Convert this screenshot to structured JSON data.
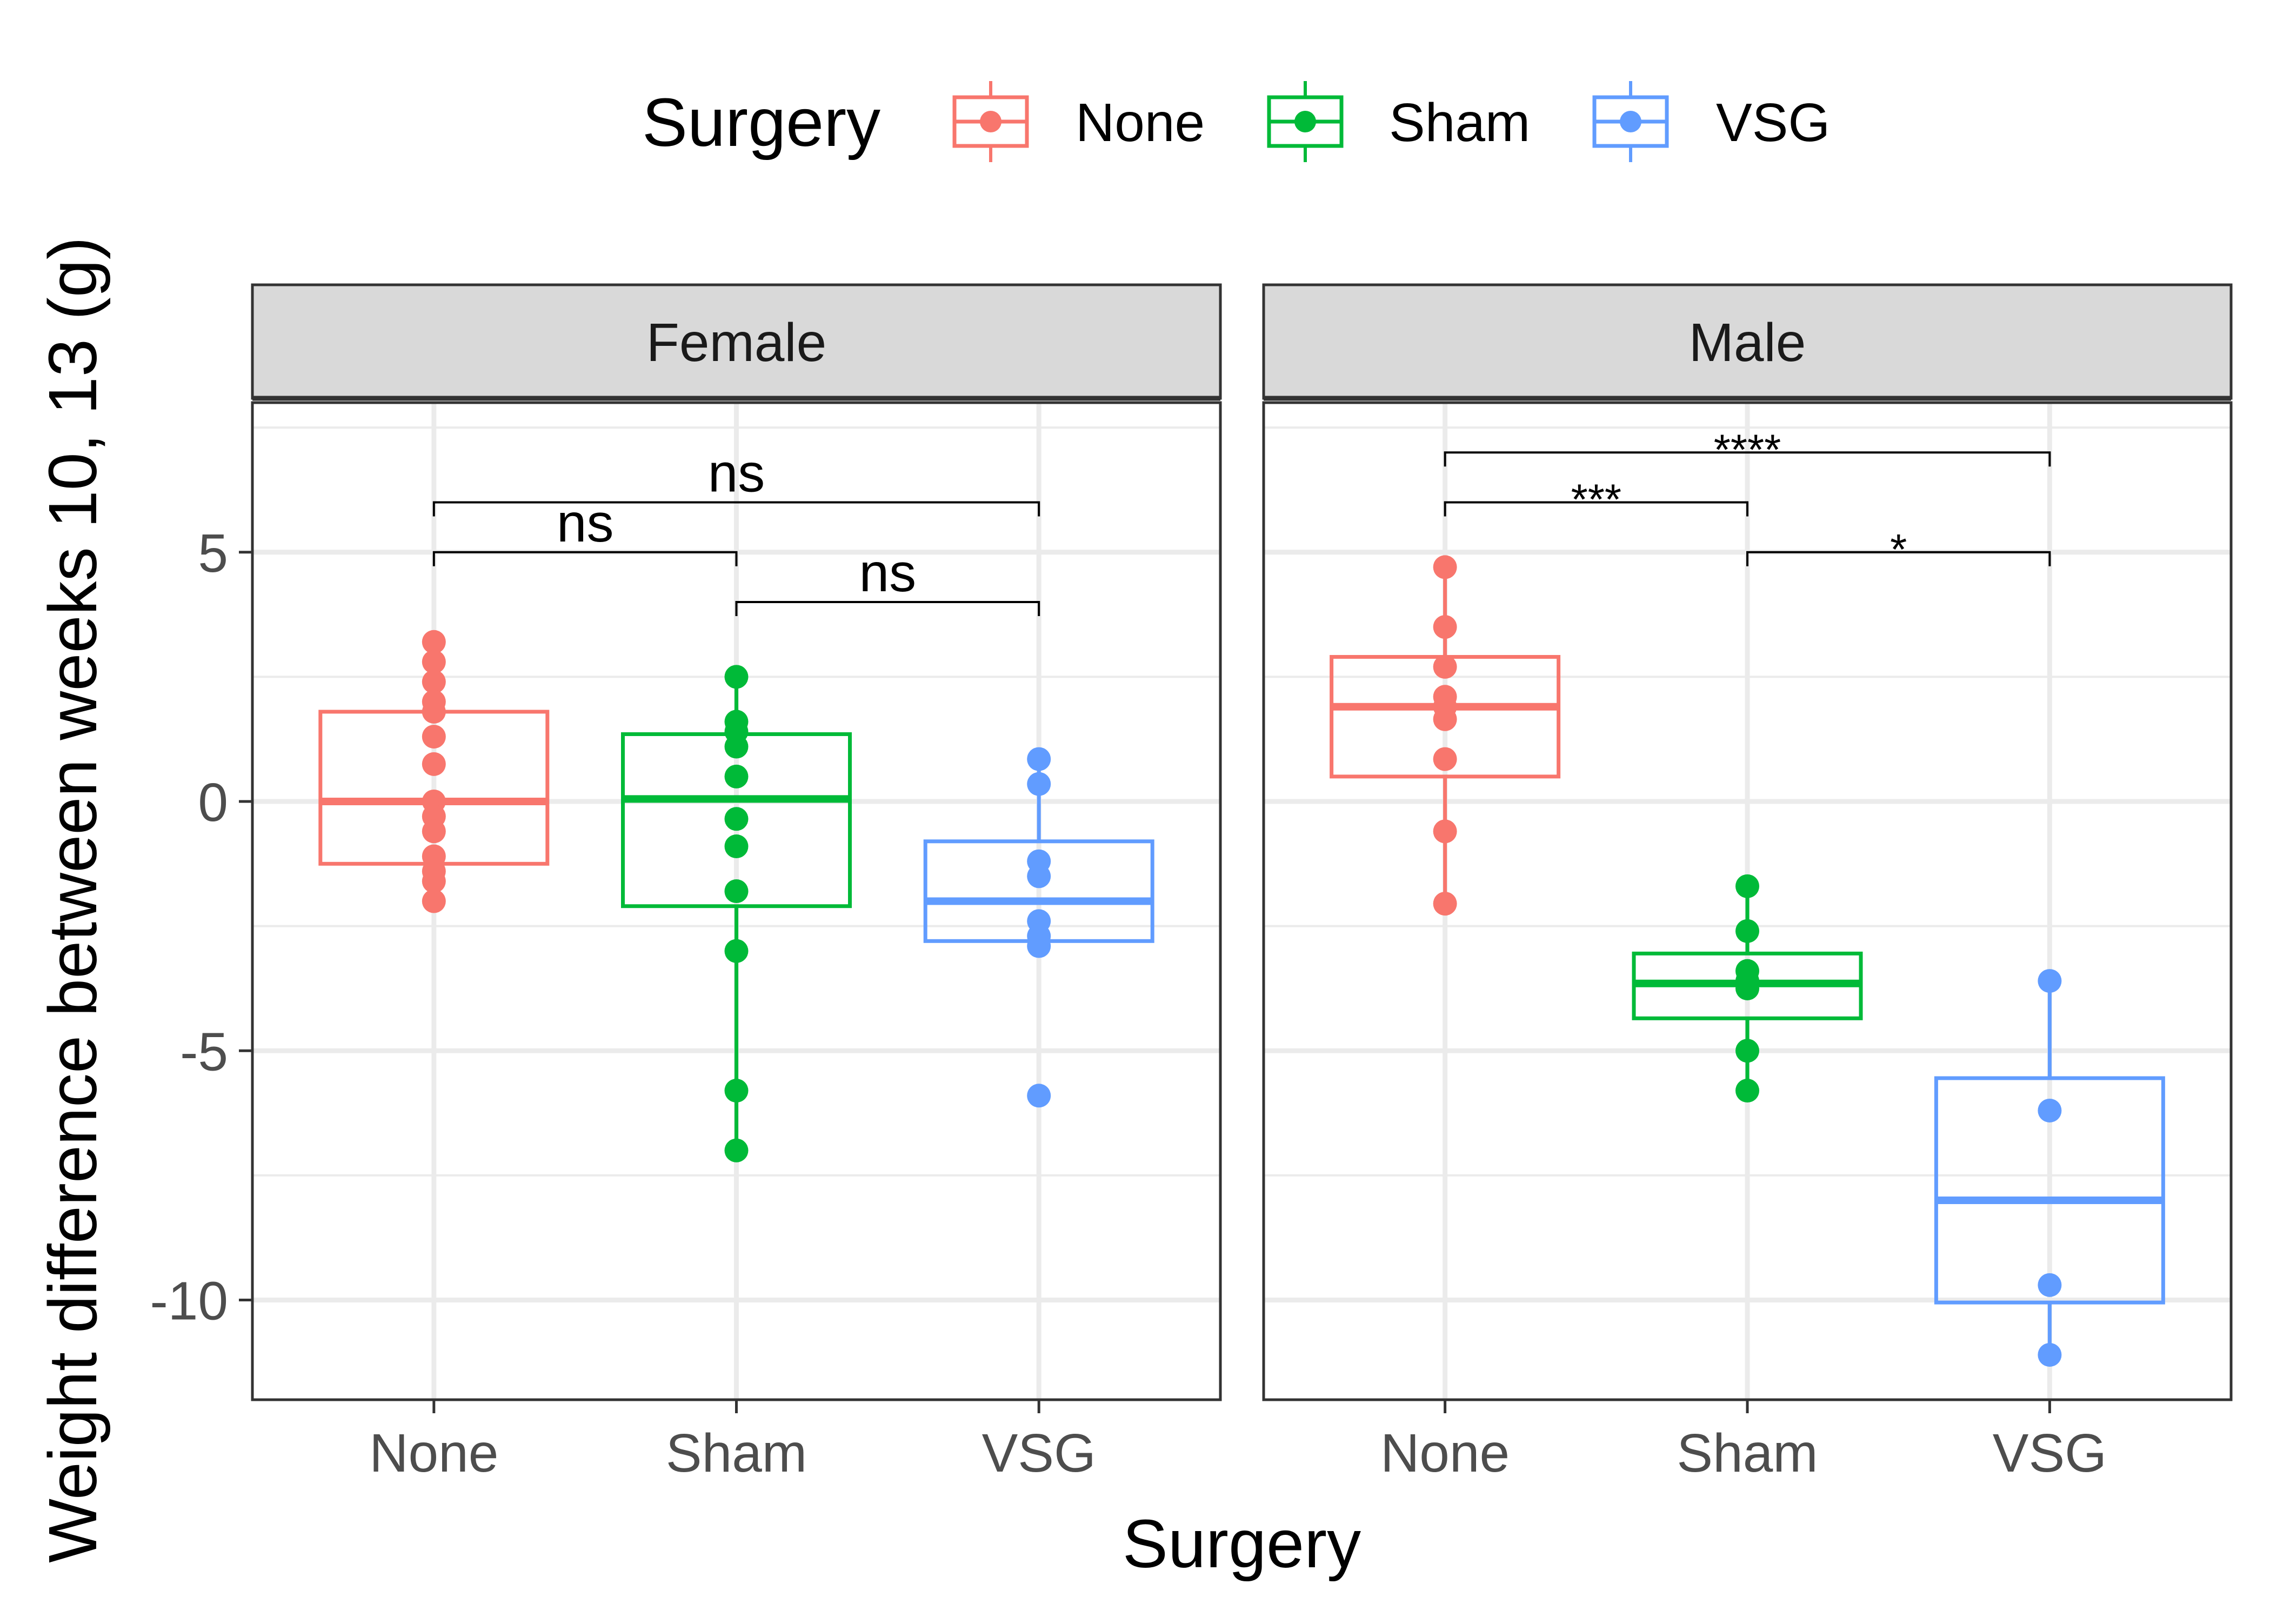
{
  "chart_data": {
    "type": "box",
    "xlabel": "Surgery",
    "ylabel": "Weight difference between weeks 10, 13 (g)",
    "ylim": [
      -12,
      8
    ],
    "yticks": [
      5,
      0,
      -5,
      -10
    ],
    "ytick_labels": [
      "5",
      "0",
      "-5",
      "-10"
    ],
    "categories": [
      "None",
      "Sham",
      "VSG"
    ],
    "legend": {
      "title": "Surgery",
      "position": "top",
      "entries": [
        "None",
        "Sham",
        "VSG"
      ]
    },
    "colors": {
      "None": "#F8766D",
      "Sham": "#00BA38",
      "VSG": "#619CFF"
    },
    "grid": true,
    "facets": [
      {
        "label": "Female",
        "groups": [
          {
            "name": "None",
            "q1": -1.25,
            "median": 0.0,
            "q3": 1.8,
            "whisker_low": -2.0,
            "whisker_high": 3.2,
            "points": [
              3.2,
              2.8,
              2.4,
              2.0,
              1.8,
              1.3,
              0.75,
              0.0,
              -0.3,
              -0.6,
              -1.1,
              -1.4,
              -1.6,
              -2.0
            ]
          },
          {
            "name": "Sham",
            "q1": -2.1,
            "median": 0.05,
            "q3": 1.35,
            "whisker_low": -7.0,
            "whisker_high": 2.5,
            "points": [
              2.5,
              1.6,
              1.4,
              1.1,
              0.5,
              -0.35,
              -0.9,
              -1.8,
              -3.0,
              -5.8,
              -7.0
            ]
          },
          {
            "name": "VSG",
            "q1": -2.8,
            "median": -2.0,
            "q3": -0.8,
            "whisker_low": -3.0,
            "whisker_high": 0.85,
            "points": [
              0.85,
              0.35,
              -1.2,
              -1.5,
              -2.4,
              -2.7,
              -2.9,
              -5.9
            ]
          }
        ],
        "comparisons": [
          {
            "from": "None",
            "to": "Sham",
            "label": "ns",
            "y": 5.0
          },
          {
            "from": "None",
            "to": "VSG",
            "label": "ns",
            "y": 6.0
          },
          {
            "from": "Sham",
            "to": "VSG",
            "label": "ns",
            "y": 4.0
          }
        ]
      },
      {
        "label": "Male",
        "groups": [
          {
            "name": "None",
            "q1": 0.5,
            "median": 1.9,
            "q3": 2.9,
            "whisker_low": -2.05,
            "whisker_high": 4.7,
            "points": [
              4.7,
              3.5,
              2.7,
              2.1,
              1.9,
              1.65,
              0.85,
              -0.6,
              -2.05
            ]
          },
          {
            "name": "Sham",
            "q1": -4.35,
            "median": -3.65,
            "q3": -3.05,
            "whisker_low": -5.8,
            "whisker_high": -1.7,
            "points": [
              -1.7,
              -2.6,
              -3.4,
              -3.6,
              -3.75,
              -5.0,
              -5.8
            ]
          },
          {
            "name": "VSG",
            "q1": -10.05,
            "median": -8.0,
            "q3": -5.55,
            "whisker_low": -11.1,
            "whisker_high": -3.6,
            "points": [
              -3.6,
              -6.2,
              -9.7,
              -11.1
            ]
          }
        ],
        "comparisons": [
          {
            "from": "Sham",
            "to": "VSG",
            "label": "*",
            "y": 5.0
          },
          {
            "from": "None",
            "to": "Sham",
            "label": "***",
            "y": 6.0
          },
          {
            "from": "None",
            "to": "VSG",
            "label": "****",
            "y": 7.0
          }
        ]
      }
    ]
  }
}
